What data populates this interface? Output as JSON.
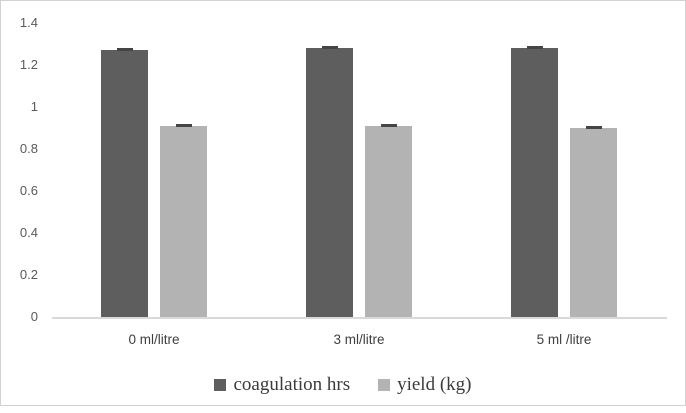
{
  "chart_data": {
    "type": "bar",
    "title": "",
    "categories": [
      "0 ml/litre",
      "3 ml/litre",
      "5 ml /litre"
    ],
    "series": [
      {
        "name": "coagulation hrs",
        "color": "#5e5e5e",
        "values": [
          1.27,
          1.28,
          1.28
        ]
      },
      {
        "name": "yield (kg)",
        "color": "#b3b3b3",
        "values": [
          0.91,
          0.91,
          0.9
        ]
      }
    ],
    "error_bars": {
      "visible": true,
      "cap_color": "#454545"
    },
    "y_axis": {
      "min": 0,
      "max": 1.4,
      "step": 0.2,
      "tick_labels": [
        "0",
        "0.2",
        "0.4",
        "0.6",
        "0.8",
        "1",
        "1.2",
        "1.4"
      ]
    },
    "xlabel": "",
    "ylabel": "",
    "legend_position": "bottom",
    "gridlines": false,
    "colors": {
      "axis_line": "#d9d9d9",
      "tick_label": "#595959",
      "category_label": "#3f3f3f",
      "legend_text": "#3b3b3b",
      "frame_border": "#d2d2d2",
      "background": "#ffffff"
    }
  }
}
